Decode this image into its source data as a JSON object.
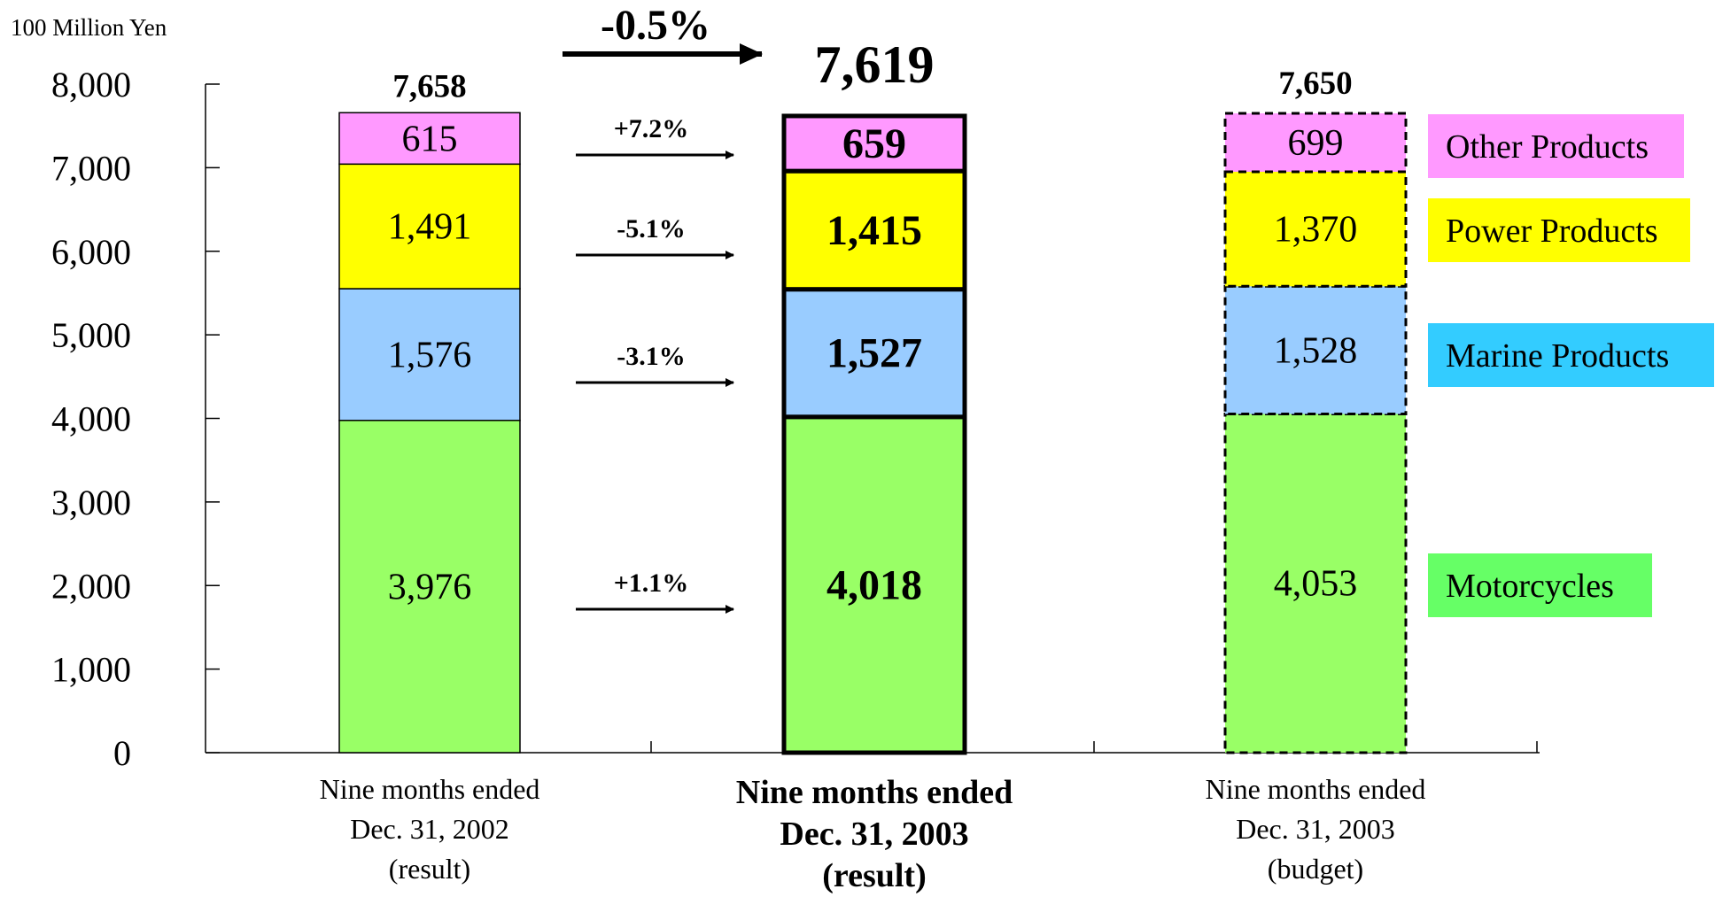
{
  "chart_data": {
    "type": "bar",
    "stacked": true,
    "unit_label": "100 Million Yen",
    "ylim": [
      0,
      8000
    ],
    "yticks": [
      "0",
      "1,000",
      "2,000",
      "3,000",
      "4,000",
      "5,000",
      "6,000",
      "7,000",
      "8,000"
    ],
    "ytick_values": [
      0,
      1000,
      2000,
      3000,
      4000,
      5000,
      6000,
      7000,
      8000
    ],
    "grid": false,
    "legend_placement": "right",
    "categories": [
      [
        "Nine months ended",
        "Dec. 31, 2002",
        "(result)"
      ],
      [
        "Nine months ended",
        "Dec. 31, 2003",
        "(result)"
      ],
      [
        "Nine months ended",
        "Dec. 31, 2003",
        "(budget)"
      ]
    ],
    "series": [
      {
        "name": "Motorcycles",
        "color": "#99ff66",
        "values": [
          3976,
          4018,
          4053
        ],
        "labels": [
          "3,976",
          "4,018",
          "4,053"
        ]
      },
      {
        "name": "Marine Products",
        "color": "#99ccff",
        "values": [
          1576,
          1527,
          1528
        ],
        "labels": [
          "1,576",
          "1,527",
          "1,528"
        ]
      },
      {
        "name": "Power Products",
        "color": "#ffff00",
        "values": [
          1491,
          1415,
          1370
        ],
        "labels": [
          "1,491",
          "1,415",
          "1,370"
        ]
      },
      {
        "name": "Other Products",
        "color": "#ff99ff",
        "values": [
          615,
          659,
          699
        ],
        "labels": [
          "615",
          "659",
          "699"
        ]
      }
    ],
    "totals": [
      7658,
      7619,
      7650
    ],
    "total_labels": [
      "7,658",
      "7,619",
      "7,650"
    ],
    "legend_colors": [
      "#66ff66",
      "#33ccff",
      "#ffff00",
      "#ff99ff"
    ],
    "change_annotations": {
      "total": "-0.5%",
      "by_series": [
        "+1.1%",
        "-3.1%",
        "-5.1%",
        "+7.2%"
      ]
    }
  }
}
